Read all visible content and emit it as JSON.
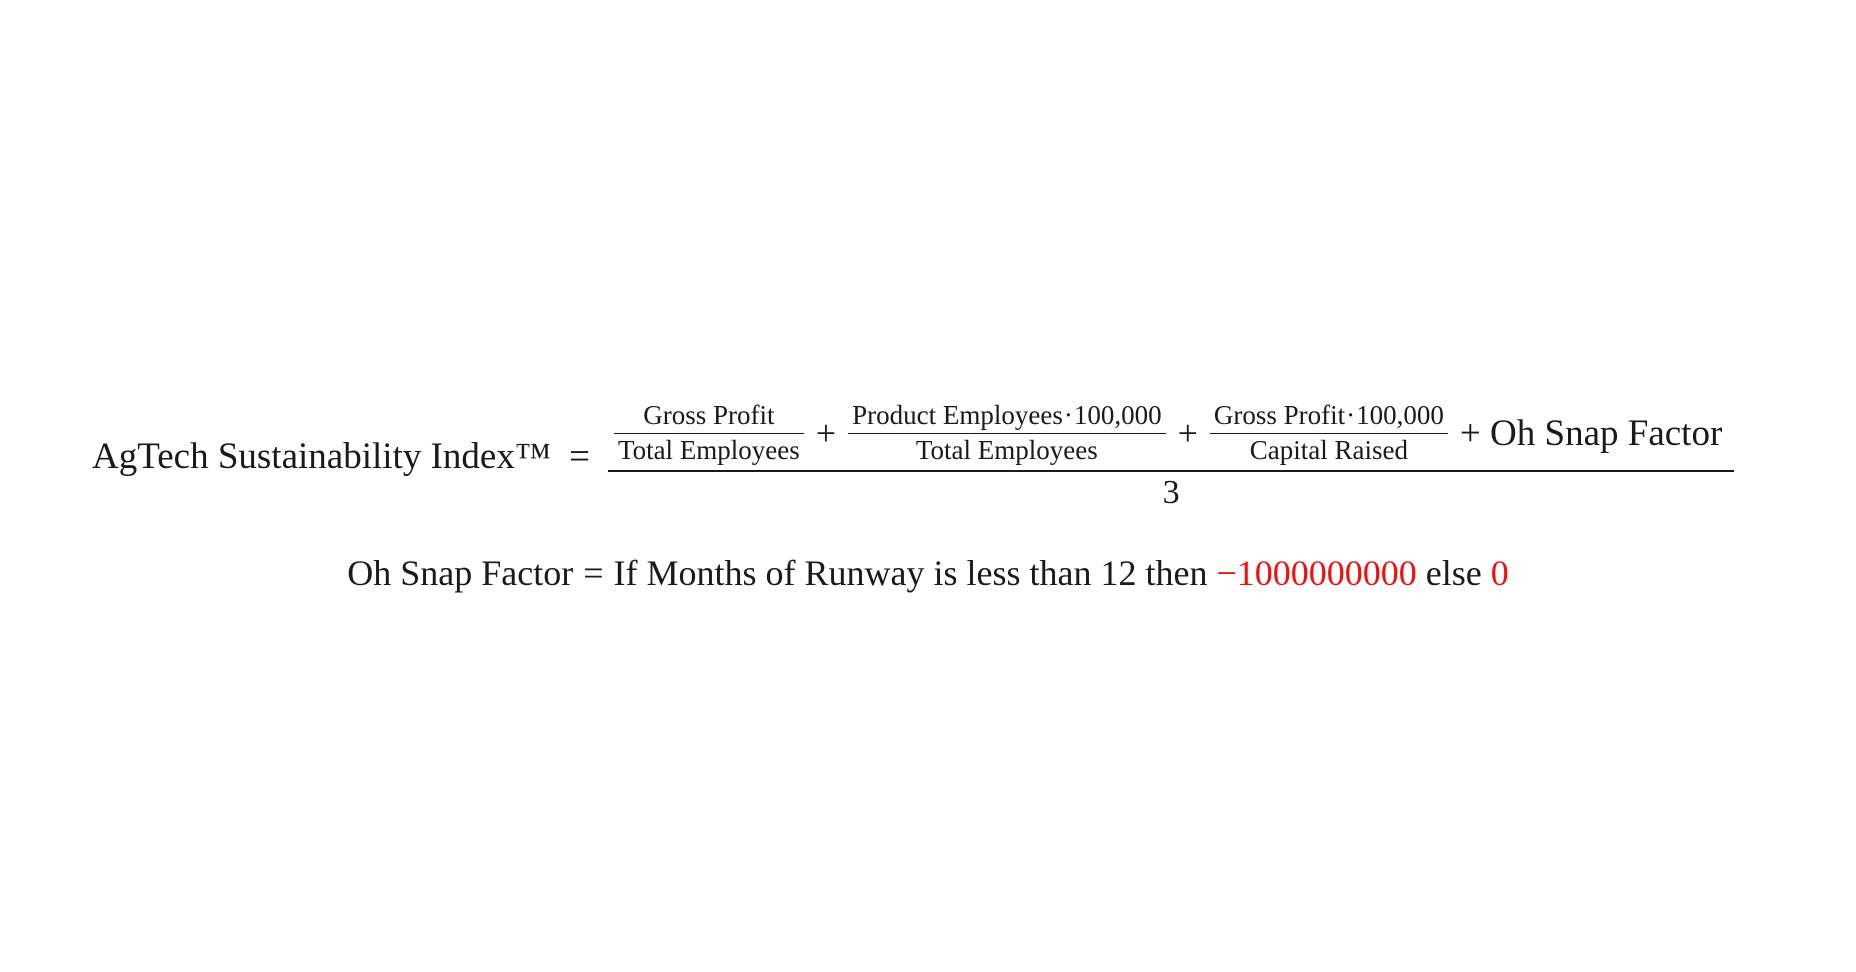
{
  "formula": {
    "lhs": "AgTech Sustainability Index™",
    "equals": "=",
    "plus": "+",
    "cdot": "·",
    "term1": {
      "numerator": "Gross Profit",
      "denominator": "Total Employees"
    },
    "term2": {
      "numerator_a": "Product Employees",
      "numerator_b": "100,000",
      "denominator": "Total Employees"
    },
    "term3": {
      "numerator_a": "Gross Profit",
      "numerator_b": "100,000",
      "denominator": "Capital Raised"
    },
    "factor_term": "+ Oh Snap Factor",
    "divisor": "3"
  },
  "definition": {
    "lhs": "Oh Snap Factor",
    "equals": "=",
    "condition": "If Months of Runway is less than 12 then",
    "then_value": "−1000000000",
    "else_word": "else",
    "else_value": "0",
    "highlight_color": "#ee1111"
  }
}
